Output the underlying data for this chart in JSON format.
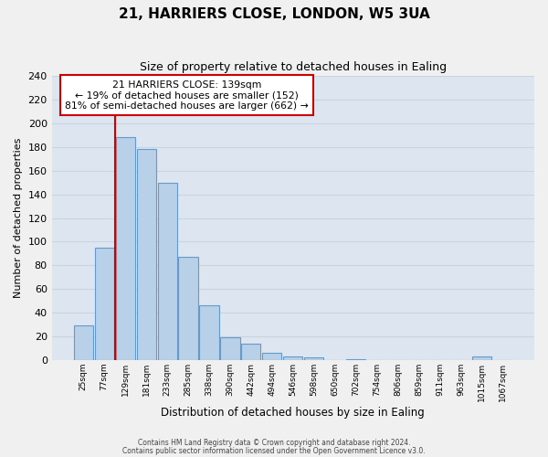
{
  "title": "21, HARRIERS CLOSE, LONDON, W5 3UA",
  "subtitle": "Size of property relative to detached houses in Ealing",
  "xlabel": "Distribution of detached houses by size in Ealing",
  "ylabel": "Number of detached properties",
  "bar_labels": [
    "25sqm",
    "77sqm",
    "129sqm",
    "181sqm",
    "233sqm",
    "285sqm",
    "338sqm",
    "390sqm",
    "442sqm",
    "494sqm",
    "546sqm",
    "598sqm",
    "650sqm",
    "702sqm",
    "754sqm",
    "806sqm",
    "859sqm",
    "911sqm",
    "963sqm",
    "1015sqm",
    "1067sqm"
  ],
  "bar_heights": [
    29,
    95,
    188,
    178,
    150,
    87,
    46,
    19,
    14,
    6,
    3,
    2,
    0,
    1,
    0,
    0,
    0,
    0,
    0,
    3,
    0
  ],
  "bar_color": "#b8d0e8",
  "bar_edge_color": "#6699cc",
  "bar_edge_width": 0.8,
  "property_line_color": "#cc0000",
  "annotation_line1": "21 HARRIERS CLOSE: 139sqm",
  "annotation_line2": "← 19% of detached houses are smaller (152)",
  "annotation_line3": "81% of semi-detached houses are larger (662) →",
  "annotation_box_color": "#ffffff",
  "annotation_box_edge": "#cc0000",
  "ylim": [
    0,
    240
  ],
  "yticks": [
    0,
    20,
    40,
    60,
    80,
    100,
    120,
    140,
    160,
    180,
    200,
    220,
    240
  ],
  "grid_color": "#c8d4e0",
  "bg_color": "#dde6f0",
  "fig_bg_color": "#f0f0f0",
  "footer1": "Contains HM Land Registry data © Crown copyright and database right 2024.",
  "footer2": "Contains public sector information licensed under the Open Government Licence v3.0."
}
